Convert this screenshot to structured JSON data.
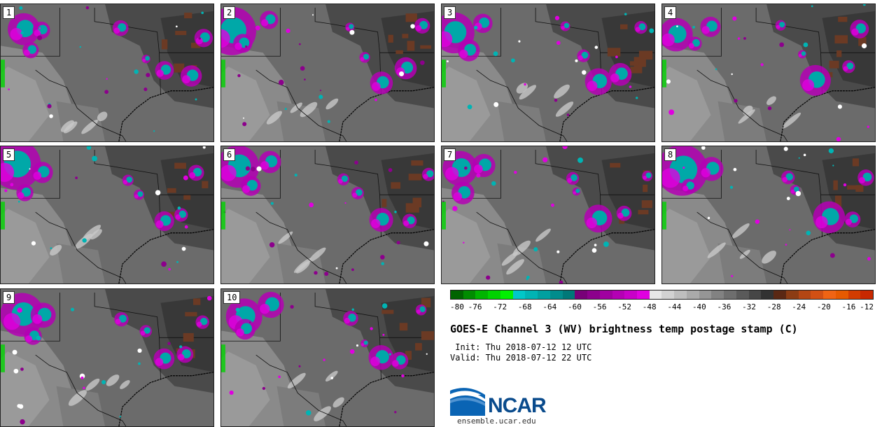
{
  "panels": [
    {
      "label": "1"
    },
    {
      "label": "2"
    },
    {
      "label": "3"
    },
    {
      "label": "4"
    },
    {
      "label": "5"
    },
    {
      "label": "6"
    },
    {
      "label": "7"
    },
    {
      "label": "8"
    },
    {
      "label": "9"
    },
    {
      "label": "10"
    }
  ],
  "colorbar": {
    "ticks": [
      "-80",
      "-76",
      "-72",
      "-68",
      "-64",
      "-60",
      "-56",
      "-52",
      "-48",
      "-44",
      "-40",
      "-36",
      "-32",
      "-28",
      "-24",
      "-20",
      "-16",
      "-12"
    ],
    "colors": [
      "#006400",
      "#008c00",
      "#00b400",
      "#00d200",
      "#00f000",
      "#00c8c8",
      "#00b4b4",
      "#00a0a0",
      "#008c8c",
      "#007878",
      "#780078",
      "#8c008c",
      "#a000a0",
      "#b400b4",
      "#c800c8",
      "#e000e0",
      "#e6e6e6",
      "#d2d2d2",
      "#bebebe",
      "#aaaaaa",
      "#969696",
      "#828282",
      "#6e6e6e",
      "#5a5a5a",
      "#464646",
      "#323232",
      "#5a2814",
      "#8c3c14",
      "#b44614",
      "#d25014",
      "#f06414",
      "#e65a00",
      "#d23c00",
      "#c82800"
    ]
  },
  "title": "GOES-E Channel 3 (WV) brightness temp postage stamp (C)",
  "init": " Init: Thu 2018-07-12 12 UTC",
  "valid": "Valid: Thu 2018-07-12 22 UTC",
  "logo_text": "NCAR",
  "site": "ensemble.ucar.edu"
}
